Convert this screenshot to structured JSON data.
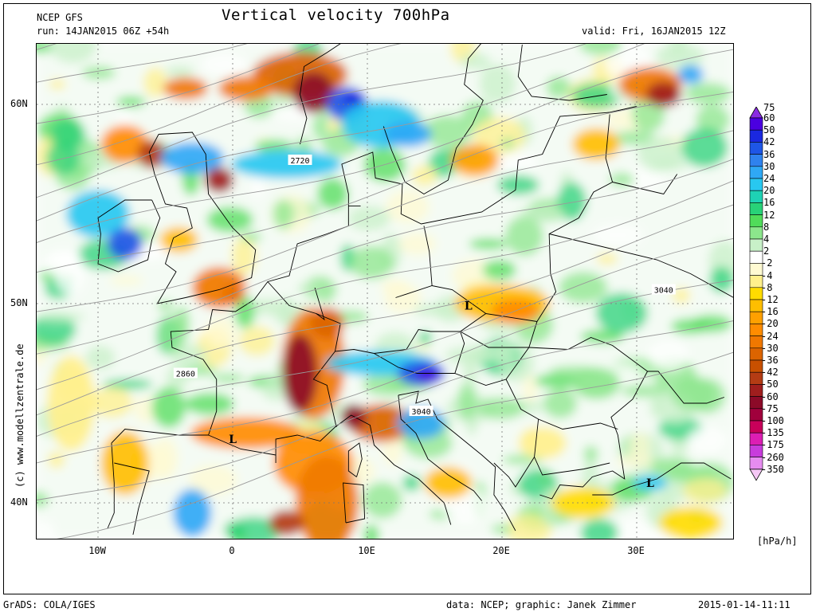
{
  "header": {
    "model": "NCEP GFS",
    "run": "run: 14JAN2015 06Z +54h",
    "title": "Vertical velocity 700hPa",
    "valid": "valid: Fri, 16JAN2015 12Z"
  },
  "axes": {
    "lat_ticks": [
      {
        "value": 60,
        "label": "60N"
      },
      {
        "value": 50,
        "label": "50N"
      },
      {
        "value": 40,
        "label": "40N"
      }
    ],
    "lon_ticks": [
      {
        "value": -10,
        "label": "10W"
      },
      {
        "value": 0,
        "label": "0"
      },
      {
        "value": 10,
        "label": "10E"
      },
      {
        "value": 20,
        "label": "20E"
      },
      {
        "value": 30,
        "label": "30E"
      }
    ]
  },
  "contour_labels": [
    {
      "text": "2720",
      "lon": 5,
      "lat": 57.2
    },
    {
      "text": "3040",
      "lon": 32,
      "lat": 50.7
    },
    {
      "text": "2860",
      "lon": -3.5,
      "lat": 46.5
    },
    {
      "text": "3040",
      "lon": 14,
      "lat": 44.6
    }
  ],
  "low_markers": [
    {
      "text": "L",
      "lon": 17.5,
      "lat": 49.9
    },
    {
      "text": "L",
      "lon": 0,
      "lat": 43.2
    },
    {
      "text": "L",
      "lon": 31,
      "lat": 41
    }
  ],
  "legend": {
    "unit": "[hPa/h]",
    "levels": [
      {
        "label": "75",
        "color": "#8a2be2"
      },
      {
        "label": "60",
        "color": "#4b00e0"
      },
      {
        "label": "50",
        "color": "#1a28e0"
      },
      {
        "label": "42",
        "color": "#1e56e6"
      },
      {
        "label": "36",
        "color": "#2f82ee"
      },
      {
        "label": "30",
        "color": "#2fa8f5"
      },
      {
        "label": "24",
        "color": "#28c8f0"
      },
      {
        "label": "20",
        "color": "#1ed2b4"
      },
      {
        "label": "16",
        "color": "#28d278"
      },
      {
        "label": "12",
        "color": "#50dc5a"
      },
      {
        "label": "8",
        "color": "#8ce68c"
      },
      {
        "label": "4",
        "color": "#c8f0c8"
      },
      {
        "label": "2",
        "color": "#ffffff"
      },
      {
        "label": "-2",
        "color": "#fffad2"
      },
      {
        "label": "-4",
        "color": "#fff08c"
      },
      {
        "label": "-8",
        "color": "#ffdc00"
      },
      {
        "label": "-12",
        "color": "#ffbe00"
      },
      {
        "label": "-16",
        "color": "#ffa000"
      },
      {
        "label": "-20",
        "color": "#ff8c00"
      },
      {
        "label": "-24",
        "color": "#f07800"
      },
      {
        "label": "-30",
        "color": "#dc6400"
      },
      {
        "label": "-36",
        "color": "#c85000"
      },
      {
        "label": "-42",
        "color": "#b43c14"
      },
      {
        "label": "-50",
        "color": "#a01e1e"
      },
      {
        "label": "-60",
        "color": "#8c0a28"
      },
      {
        "label": "-75",
        "color": "#a0003c"
      },
      {
        "label": "-100",
        "color": "#c8005a"
      },
      {
        "label": "-135",
        "color": "#dc1eb4"
      },
      {
        "label": "-175",
        "color": "#c83cdc"
      },
      {
        "label": "-260",
        "color": "#e68cf0"
      },
      {
        "label": "-350",
        "color": "#f5c8f5"
      }
    ]
  },
  "footer": {
    "left": "GrADS: COLA/IGES",
    "credit": "data: NCEP; graphic: Janek Zimmer",
    "timestamp": "2015-01-14-11:11"
  },
  "watermark": "(c) www.modellzentrale.de"
}
